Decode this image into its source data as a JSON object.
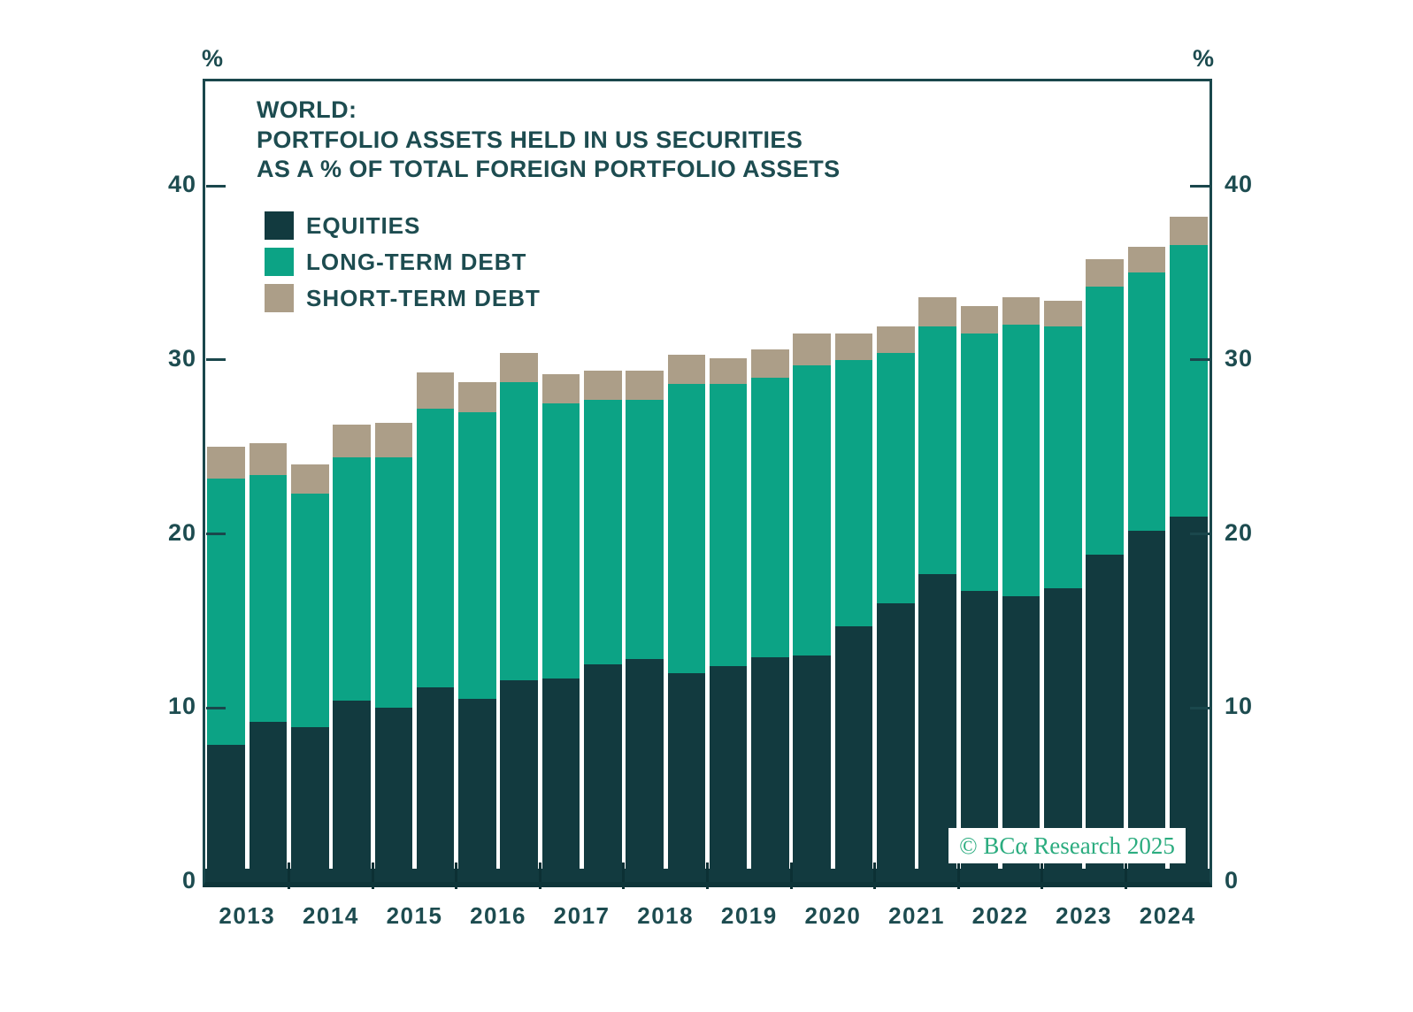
{
  "chart_data": {
    "type": "bar",
    "stacked": true,
    "title_lines": [
      "WORLD:",
      "PORTFOLIO ASSETS HELD IN US SECURITIES",
      "AS A % OF TOTAL FOREIGN PORTFOLIO ASSETS"
    ],
    "y_unit": "%",
    "ylim": [
      0,
      46
    ],
    "yticks": [
      0,
      10,
      20,
      30,
      40
    ],
    "grid": false,
    "legend_position": "top-left-inside",
    "x_year_labels": [
      "2013",
      "2014",
      "2015",
      "2016",
      "2017",
      "2018",
      "2019",
      "2020",
      "2021",
      "2022",
      "2023",
      "2024"
    ],
    "categories": [
      "2013 H1",
      "2013 H2",
      "2014 H1",
      "2014 H2",
      "2015 H1",
      "2015 H2",
      "2016 H1",
      "2016 H2",
      "2017 H1",
      "2017 H2",
      "2018 H1",
      "2018 H2",
      "2019 H1",
      "2019 H2",
      "2020 H1",
      "2020 H2",
      "2021 H1",
      "2021 H2",
      "2022 H1",
      "2022 H2",
      "2023 H1",
      "2023 H2",
      "2024 H1",
      "2024 H2"
    ],
    "series": [
      {
        "name": "EQUITIES",
        "color": "#123a3f",
        "values": [
          7.9,
          9.2,
          8.9,
          10.4,
          10.0,
          11.2,
          10.5,
          11.6,
          11.7,
          12.5,
          12.8,
          12.0,
          12.4,
          12.9,
          13.0,
          14.7,
          16.0,
          17.7,
          16.7,
          16.4,
          16.9,
          18.8,
          20.2,
          21.0
        ]
      },
      {
        "name": "LONG-TERM DEBT",
        "color": "#0ca385",
        "values": [
          15.3,
          14.2,
          13.4,
          14.0,
          14.4,
          16.0,
          16.5,
          17.1,
          15.8,
          15.2,
          14.9,
          16.6,
          16.2,
          16.1,
          16.7,
          15.3,
          14.4,
          14.2,
          14.8,
          15.6,
          15.0,
          15.4,
          14.8,
          15.6
        ]
      },
      {
        "name": "SHORT-TERM DEBT",
        "color": "#ac9e88",
        "values": [
          1.8,
          1.8,
          1.7,
          1.9,
          2.0,
          2.1,
          1.7,
          1.7,
          1.7,
          1.7,
          1.7,
          1.7,
          1.5,
          1.6,
          1.8,
          1.5,
          1.5,
          1.7,
          1.6,
          1.6,
          1.5,
          1.6,
          1.5,
          1.6
        ]
      }
    ],
    "totals": [
      25.0,
      25.2,
      24.0,
      26.3,
      26.4,
      29.3,
      28.7,
      30.4,
      29.2,
      29.4,
      29.4,
      30.3,
      30.1,
      30.6,
      31.5,
      31.5,
      31.9,
      33.6,
      33.1,
      33.6,
      33.4,
      35.8,
      36.5,
      38.2
    ],
    "watermark": "© BCα Research 2025",
    "colors": {
      "text": "#1d4c50",
      "axis": "#1a474c",
      "baseline": "#0e3539",
      "watermark_text": "#2bac7f",
      "background": "#ffffff"
    }
  }
}
